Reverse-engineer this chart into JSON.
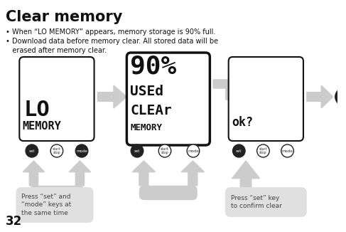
{
  "title": "Clear memory",
  "page_number": "32",
  "background_color": "#ffffff",
  "arrow_color": "#cccccc",
  "button_dark": "#222222",
  "button_outline": "#888888",
  "label_bg": "#e0e0e0",
  "screen1_text1": "LO",
  "screen1_text2": "MEMORY",
  "screen2_text1": "90%",
  "screen2_text2": "USEd",
  "screen2_text3": "CLEAr",
  "screen2_text4": "MEMORY",
  "screen3_text1": "ok?",
  "press_label1": "Press “set” and\n“mode” keys at\nthe same time",
  "press_label2": "Press “set” key\nto confirm clear",
  "bullet1": "• When “LO MEMORY” appears, memory storage is 90% full.",
  "bullet2a": "• Download data before memory clear. All stored data will be",
  "bullet2b": "   erased after memory clear."
}
